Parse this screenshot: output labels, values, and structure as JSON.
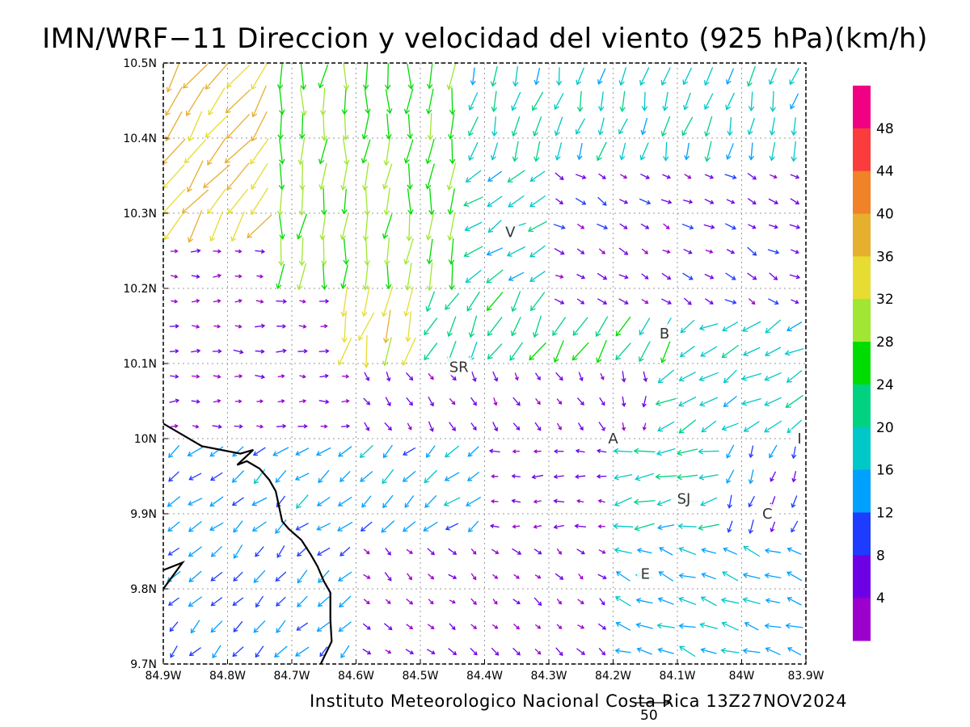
{
  "title": "IMN/WRF−11 Direccion y velocidad del viento (925 hPa)(km/h)",
  "credit": "Instituto Meteorologico Nacional Costa Rica 13Z27NOV2024",
  "reference_vector": {
    "label": "50",
    "speed": 50
  },
  "map": {
    "lon_range": [
      -84.9,
      -83.9
    ],
    "lat_range": [
      9.7,
      10.5
    ],
    "grid": true,
    "lon_ticks": [
      {
        "value": -84.9,
        "label": "84.9W"
      },
      {
        "value": -84.8,
        "label": "84.8W"
      },
      {
        "value": -84.7,
        "label": "84.7W"
      },
      {
        "value": -84.6,
        "label": "84.6W"
      },
      {
        "value": -84.5,
        "label": "84.5W"
      },
      {
        "value": -84.4,
        "label": "84.4W"
      },
      {
        "value": -84.3,
        "label": "84.3W"
      },
      {
        "value": -84.2,
        "label": "84.2W"
      },
      {
        "value": -84.1,
        "label": "84.1W"
      },
      {
        "value": -84.0,
        "label": "84W"
      },
      {
        "value": -83.9,
        "label": "83.9W"
      }
    ],
    "lat_ticks": [
      {
        "value": 10.5,
        "label": "10.5N"
      },
      {
        "value": 10.4,
        "label": "10.4N"
      },
      {
        "value": 10.3,
        "label": "10.3N"
      },
      {
        "value": 10.2,
        "label": "10.2N"
      },
      {
        "value": 10.1,
        "label": "10.1N"
      },
      {
        "value": 10.0,
        "label": "10N"
      },
      {
        "value": 9.9,
        "label": "9.9N"
      },
      {
        "value": 9.8,
        "label": "9.8N"
      },
      {
        "value": 9.7,
        "label": "9.7N"
      }
    ],
    "station_labels": [
      {
        "text": "V",
        "lon": -84.36,
        "lat": 10.275
      },
      {
        "text": "SR",
        "lon": -84.44,
        "lat": 10.095
      },
      {
        "text": "B",
        "lon": -84.12,
        "lat": 10.14
      },
      {
        "text": "A",
        "lon": -84.2,
        "lat": 10.0
      },
      {
        "text": "I",
        "lon": -83.91,
        "lat": 10.0
      },
      {
        "text": "SJ",
        "lon": -84.09,
        "lat": 9.92
      },
      {
        "text": "C",
        "lon": -83.96,
        "lat": 9.9
      },
      {
        "text": "E",
        "lon": -84.15,
        "lat": 9.82
      }
    ],
    "coastline": [
      [
        -84.9,
        10.02
      ],
      [
        -84.84,
        9.99
      ],
      [
        -84.78,
        9.98
      ],
      [
        -84.76,
        9.985
      ],
      [
        -84.785,
        9.965
      ],
      [
        -84.77,
        9.97
      ],
      [
        -84.75,
        9.96
      ],
      [
        -84.735,
        9.945
      ],
      [
        -84.725,
        9.93
      ],
      [
        -84.72,
        9.91
      ],
      [
        -84.715,
        9.89
      ],
      [
        -84.705,
        9.88
      ],
      [
        -84.685,
        9.865
      ],
      [
        -84.67,
        9.845
      ],
      [
        -84.66,
        9.83
      ],
      [
        -84.65,
        9.81
      ],
      [
        -84.64,
        9.795
      ],
      [
        -84.64,
        9.76
      ],
      [
        -84.638,
        9.73
      ],
      [
        -84.655,
        9.7
      ]
    ],
    "coastline_south": [
      [
        -84.9,
        9.825
      ],
      [
        -84.87,
        9.835
      ],
      [
        -84.9,
        9.8
      ]
    ]
  },
  "chart_data": {
    "type": "vector_field",
    "title": "IMN/WRF−11 Direccion y velocidad del viento (925 hPa)(km/h)",
    "units": "km/h",
    "level": "925 hPa",
    "valid_time": "13Z27NOV2024",
    "grid_spacing_deg": 0.0333,
    "extent": {
      "lon": [
        -84.9,
        -83.9
      ],
      "lat": [
        9.7,
        10.5
      ]
    },
    "color_scale": [
      {
        "min": 0,
        "max": 4,
        "color": "#9c00cc"
      },
      {
        "min": 4,
        "max": 8,
        "color": "#6e00e6"
      },
      {
        "min": 8,
        "max": 12,
        "color": "#1e3cff"
      },
      {
        "min": 12,
        "max": 16,
        "color": "#00a0ff"
      },
      {
        "min": 16,
        "max": 20,
        "color": "#00c8c8"
      },
      {
        "min": 20,
        "max": 24,
        "color": "#00d282"
      },
      {
        "min": 24,
        "max": 28,
        "color": "#00dc00"
      },
      {
        "min": 28,
        "max": 32,
        "color": "#a0e632"
      },
      {
        "min": 32,
        "max": 36,
        "color": "#e6dc32"
      },
      {
        "min": 36,
        "max": 40,
        "color": "#e6af2d"
      },
      {
        "min": 40,
        "max": 44,
        "color": "#f08228"
      },
      {
        "min": 44,
        "max": 48,
        "color": "#fa3c3c"
      },
      {
        "min": 48,
        "max": 52,
        "color": "#f00082"
      }
    ],
    "colorbar_labels": [
      "4",
      "8",
      "12",
      "16",
      "20",
      "24",
      "28",
      "32",
      "36",
      "40",
      "44",
      "48"
    ],
    "wind_regions": [
      {
        "lon": [
          -84.9,
          -84.72
        ],
        "lat": [
          10.25,
          10.5
        ],
        "dir_from_deg": 35,
        "speed": 36
      },
      {
        "lon": [
          -84.72,
          -84.45
        ],
        "lat": [
          10.2,
          10.5
        ],
        "dir_from_deg": 5,
        "speed": 28
      },
      {
        "lon": [
          -84.62,
          -84.5
        ],
        "lat": [
          10.1,
          10.3
        ],
        "dir_from_deg": 15,
        "speed": 34
      },
      {
        "lon": [
          -84.45,
          -83.9
        ],
        "lat": [
          10.35,
          10.5
        ],
        "dir_from_deg": 15,
        "speed": 18
      },
      {
        "lon": [
          -84.5,
          -84.3
        ],
        "lat": [
          10.2,
          10.35
        ],
        "dir_from_deg": 60,
        "speed": 18
      },
      {
        "lon": [
          -84.3,
          -83.9
        ],
        "lat": [
          10.18,
          10.35
        ],
        "dir_from_deg": 300,
        "speed": 6
      },
      {
        "lon": [
          -84.5,
          -84.1
        ],
        "lat": [
          10.1,
          10.2
        ],
        "dir_from_deg": 30,
        "speed": 22
      },
      {
        "lon": [
          -84.9,
          -84.6
        ],
        "lat": [
          10.0,
          10.25
        ],
        "dir_from_deg": 270,
        "speed": 4
      },
      {
        "lon": [
          -84.6,
          -84.2
        ],
        "lat": [
          10.0,
          10.1
        ],
        "dir_from_deg": 330,
        "speed": 5
      },
      {
        "lon": [
          -84.15,
          -83.9
        ],
        "lat": [
          10.0,
          10.15
        ],
        "dir_from_deg": 60,
        "speed": 18
      },
      {
        "lon": [
          -84.9,
          -84.4
        ],
        "lat": [
          9.85,
          10.0
        ],
        "dir_from_deg": 50,
        "speed": 14
      },
      {
        "lon": [
          -84.4,
          -84.2
        ],
        "lat": [
          9.85,
          10.0
        ],
        "dir_from_deg": 90,
        "speed": 5
      },
      {
        "lon": [
          -84.2,
          -84.05
        ],
        "lat": [
          9.85,
          10.0
        ],
        "dir_from_deg": 80,
        "speed": 18
      },
      {
        "lon": [
          -84.05,
          -83.9
        ],
        "lat": [
          9.85,
          10.0
        ],
        "dir_from_deg": 20,
        "speed": 10
      },
      {
        "lon": [
          -84.9,
          -84.6
        ],
        "lat": [
          9.7,
          9.85
        ],
        "dir_from_deg": 45,
        "speed": 12
      },
      {
        "lon": [
          -84.6,
          -84.2
        ],
        "lat": [
          9.7,
          9.85
        ],
        "dir_from_deg": 310,
        "speed": 4
      },
      {
        "lon": [
          -84.2,
          -83.9
        ],
        "lat": [
          9.7,
          9.85
        ],
        "dir_from_deg": 110,
        "speed": 15
      }
    ]
  }
}
